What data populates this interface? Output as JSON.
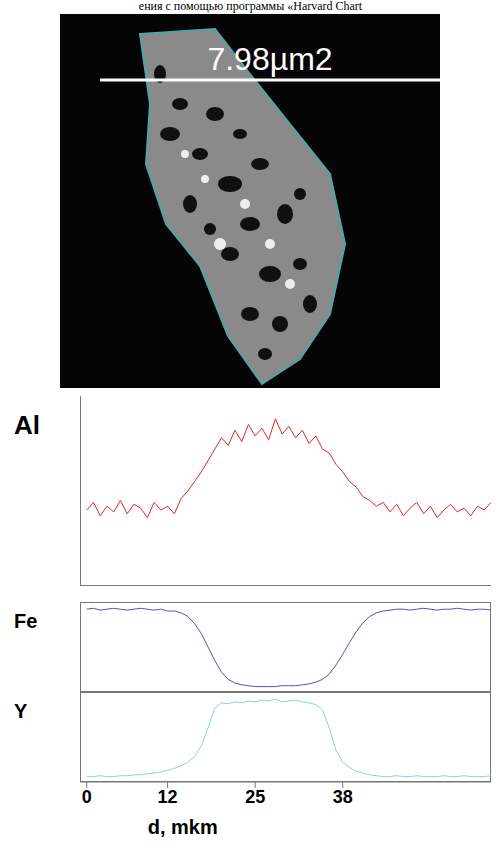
{
  "caption_fragment": "ения с помощью программы «Harvard Chart",
  "image": {
    "scale_label": "7.98µm2"
  },
  "chart_data": [
    {
      "type": "line",
      "title": "Al",
      "color": "#e0262a",
      "xlim": [
        -1,
        60
      ],
      "ylim": [
        0,
        100
      ],
      "tick_labels": false,
      "x": [
        0,
        1,
        2,
        3,
        4,
        5,
        6,
        7,
        8,
        9,
        10,
        11,
        12,
        13,
        14,
        15,
        16,
        17,
        18,
        19,
        20,
        21,
        22,
        23,
        24,
        25,
        26,
        27,
        28,
        29,
        30,
        31,
        32,
        33,
        34,
        35,
        36,
        37,
        38,
        39,
        40,
        41,
        42,
        43,
        44,
        45,
        46,
        47,
        48,
        49,
        50,
        51,
        52,
        53,
        54,
        55,
        56,
        57,
        58,
        59,
        60
      ],
      "values": [
        40,
        44,
        37,
        42,
        39,
        45,
        38,
        43,
        41,
        36,
        44,
        40,
        42,
        38,
        46,
        50,
        55,
        60,
        66,
        72,
        78,
        74,
        82,
        76,
        85,
        79,
        83,
        77,
        88,
        80,
        84,
        78,
        82,
        75,
        79,
        72,
        70,
        64,
        60,
        55,
        52,
        47,
        45,
        42,
        44,
        39,
        43,
        37,
        41,
        44,
        38,
        42,
        36,
        40,
        43,
        39,
        41,
        37,
        42,
        40,
        44
      ]
    },
    {
      "type": "line",
      "title": "Fe",
      "color": "#5656a8",
      "xlim": [
        -1,
        60
      ],
      "ylim": [
        0,
        100
      ],
      "tick_labels": false,
      "x": [
        0,
        1,
        2,
        3,
        4,
        5,
        6,
        7,
        8,
        9,
        10,
        11,
        12,
        13,
        14,
        15,
        16,
        17,
        18,
        19,
        20,
        21,
        22,
        23,
        24,
        25,
        26,
        27,
        28,
        29,
        30,
        31,
        32,
        33,
        34,
        35,
        36,
        37,
        38,
        39,
        40,
        41,
        42,
        43,
        44,
        45,
        46,
        47,
        48,
        49,
        50,
        51,
        52,
        53,
        54,
        55,
        56,
        57,
        58,
        59,
        60
      ],
      "values": [
        92,
        93,
        91,
        92,
        93,
        92,
        91,
        92,
        93,
        92,
        91,
        92,
        90,
        90,
        88,
        84,
        76,
        65,
        50,
        35,
        22,
        14,
        10,
        8,
        7,
        6,
        6,
        6,
        6,
        7,
        7,
        7,
        8,
        9,
        11,
        14,
        20,
        30,
        42,
        55,
        67,
        77,
        84,
        88,
        90,
        91,
        92,
        92,
        91,
        92,
        93,
        92,
        91,
        92,
        92,
        93,
        92,
        91,
        92,
        92,
        91
      ]
    },
    {
      "type": "line",
      "title": "Y",
      "color": "#8ccfe3",
      "xlim": [
        -1,
        60
      ],
      "ylim": [
        0,
        100
      ],
      "tick_labels": "x",
      "xticks": [
        0,
        12,
        25,
        38
      ],
      "xlabel": "d, mkm",
      "x": [
        0,
        1,
        2,
        3,
        4,
        5,
        6,
        7,
        8,
        9,
        10,
        11,
        12,
        13,
        14,
        15,
        16,
        17,
        18,
        19,
        20,
        21,
        22,
        23,
        24,
        25,
        26,
        27,
        28,
        29,
        30,
        31,
        32,
        33,
        34,
        35,
        36,
        37,
        38,
        39,
        40,
        41,
        42,
        43,
        44,
        45,
        46,
        47,
        48,
        49,
        50,
        51,
        52,
        53,
        54,
        55,
        56,
        57,
        58,
        59,
        60
      ],
      "values": [
        6,
        6,
        7,
        6,
        6,
        7,
        7,
        8,
        8,
        9,
        10,
        11,
        13,
        15,
        18,
        22,
        28,
        40,
        60,
        82,
        88,
        87,
        89,
        88,
        90,
        89,
        91,
        90,
        92,
        89,
        90,
        91,
        89,
        88,
        86,
        80,
        60,
        35,
        22,
        16,
        12,
        10,
        8,
        7,
        6,
        6,
        7,
        6,
        6,
        7,
        6,
        6,
        6,
        7,
        6,
        6,
        7,
        6,
        6,
        6,
        7
      ]
    }
  ]
}
